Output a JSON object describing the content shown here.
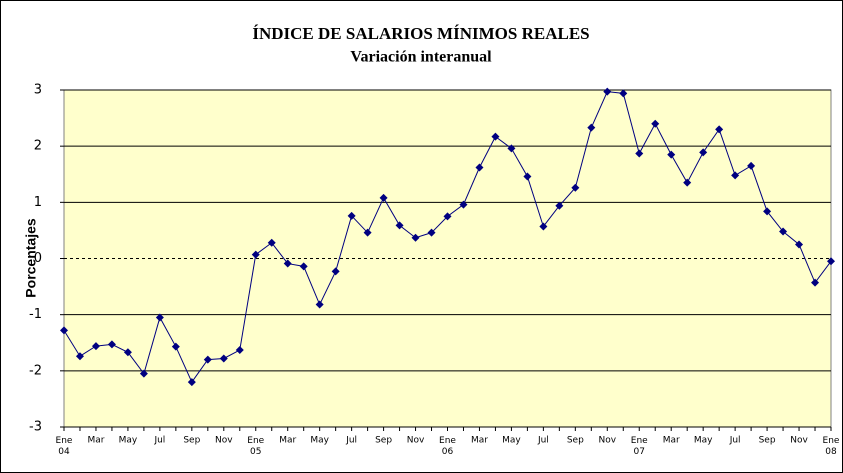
{
  "chart_data": {
    "type": "line",
    "title": "ÍNDICE DE SALARIOS MÍNIMOS REALES",
    "subtitle": "Variación interanual",
    "y_label": "Porcentajes",
    "categories": [
      "Ene 04",
      null,
      "Mar",
      null,
      "May",
      null,
      "Jul",
      null,
      "Sep",
      null,
      "Nov",
      null,
      "Ene 05",
      null,
      "Mar",
      null,
      "May",
      null,
      "Jul",
      null,
      "Sep",
      null,
      "Nov",
      null,
      "Ene 06",
      null,
      "Mar",
      null,
      "May",
      null,
      "Jul",
      null,
      "Sep",
      null,
      "Nov",
      null,
      "Ene 07",
      null,
      "Mar",
      null,
      "May",
      null,
      "Jul",
      null,
      "Sep",
      null,
      "Nov",
      null,
      "Ene 08"
    ],
    "series": [
      {
        "name": "Índice de salarios mínimos reales",
        "color": "#000080",
        "values": [
          -1.28,
          -1.74,
          -1.56,
          -1.53,
          -1.67,
          -2.05,
          -1.05,
          -1.57,
          -2.2,
          -1.8,
          -1.78,
          -1.63,
          0.07,
          0.28,
          -0.09,
          -0.14,
          -0.82,
          -0.23,
          0.76,
          0.46,
          1.08,
          0.59,
          0.37,
          0.46,
          0.75,
          0.96,
          1.62,
          2.17,
          1.96,
          1.46,
          0.57,
          0.94,
          1.26,
          2.33,
          2.97,
          2.94,
          1.87,
          2.4,
          1.85,
          1.35,
          1.89,
          2.3,
          1.48,
          1.65,
          0.84,
          0.48,
          0.25,
          -0.43,
          -0.05
        ]
      }
    ],
    "ylim": [
      -3,
      3
    ],
    "yticks": [
      -3,
      -2,
      -1,
      0,
      1,
      2,
      3
    ],
    "grid": true,
    "plot_background": "#ffffcc"
  }
}
